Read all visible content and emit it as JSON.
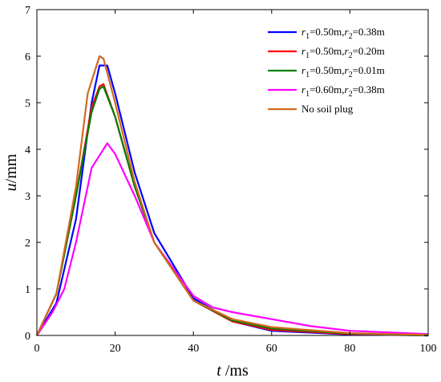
{
  "chart_data": {
    "type": "line",
    "xlabel": "t /ms",
    "ylabel": "u/mm",
    "xlim": [
      0,
      100
    ],
    "ylim": [
      0,
      7
    ],
    "xticks": [
      0,
      20,
      40,
      60,
      80,
      100
    ],
    "yticks": [
      0,
      1,
      2,
      3,
      4,
      5,
      6,
      7
    ],
    "grid": false,
    "legend_position": "top-right",
    "series": [
      {
        "name": "r1=0.50m,r2=0.38m",
        "label_parts": {
          "r1": "0.50m",
          "r2": "0.38m"
        },
        "color": "#0000ff",
        "x": [
          0,
          5,
          10,
          14,
          16,
          18,
          20,
          25,
          30,
          40,
          50,
          60,
          80,
          100
        ],
        "y": [
          0,
          0.7,
          2.5,
          5.0,
          5.8,
          5.8,
          5.2,
          3.5,
          2.2,
          0.8,
          0.3,
          0.1,
          0.02,
          0.0
        ]
      },
      {
        "name": "r1=0.50m,r2=0.20m",
        "label_parts": {
          "r1": "0.50m",
          "r2": "0.20m"
        },
        "color": "#ff0000",
        "x": [
          0,
          5,
          10,
          14,
          16,
          17,
          20,
          25,
          30,
          40,
          50,
          60,
          80,
          100
        ],
        "y": [
          0,
          0.9,
          3.0,
          4.9,
          5.35,
          5.4,
          4.7,
          3.2,
          2.0,
          0.75,
          0.3,
          0.12,
          0.03,
          0.0
        ]
      },
      {
        "name": "r1=0.50m,r2=0.01m",
        "label_parts": {
          "r1": "0.50m",
          "r2": "0.01m"
        },
        "color": "#007f00",
        "x": [
          0,
          5,
          10,
          14,
          16,
          17,
          20,
          25,
          30,
          40,
          50,
          60,
          80,
          100
        ],
        "y": [
          0,
          0.9,
          3.0,
          4.8,
          5.3,
          5.35,
          4.7,
          3.2,
          2.0,
          0.75,
          0.32,
          0.15,
          0.04,
          0.0
        ]
      },
      {
        "name": "r1=0.60m,r2=0.38m",
        "label_parts": {
          "r1": "0.60m",
          "r2": "0.38m"
        },
        "color": "#ff00ff",
        "x": [
          0,
          4,
          7,
          10,
          14,
          18,
          20,
          25,
          30,
          40,
          45,
          50,
          60,
          70,
          80,
          100
        ],
        "y": [
          0,
          0.5,
          1.0,
          2.0,
          3.6,
          4.13,
          3.9,
          3.0,
          2.0,
          0.85,
          0.6,
          0.5,
          0.35,
          0.2,
          0.1,
          0.03
        ]
      },
      {
        "name": "No soil plug",
        "color": "#d2691e",
        "x": [
          0,
          5,
          10,
          13,
          16,
          17,
          20,
          25,
          30,
          40,
          50,
          60,
          80,
          100
        ],
        "y": [
          0,
          0.9,
          3.2,
          5.2,
          6.0,
          5.95,
          5.0,
          3.3,
          2.0,
          0.75,
          0.35,
          0.18,
          0.05,
          0.01
        ]
      }
    ]
  }
}
